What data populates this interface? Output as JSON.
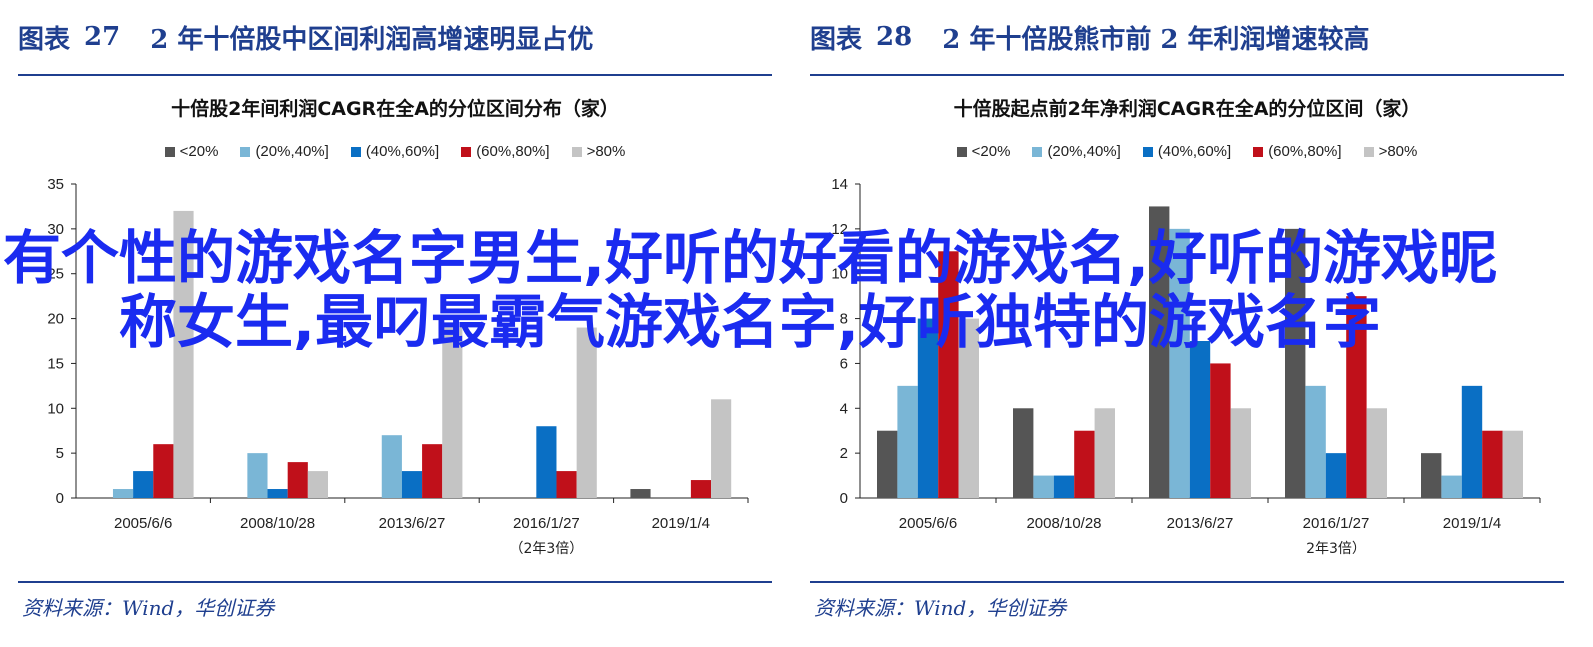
{
  "legend": [
    {
      "label": "<20%",
      "color": "#555555"
    },
    {
      "label": "(20%,40%]",
      "color": "#7ab6d6"
    },
    {
      "label": "(40%,60%]",
      "color": "#0a6fc4"
    },
    {
      "label": "(60%,80%]",
      "color": "#c0101a"
    },
    {
      "label": ">80%",
      "color": "#c4c4c4"
    }
  ],
  "left": {
    "header_label": "图表",
    "header_num": "27",
    "header_title": "2 年十倍股中区间利润高增速明显占优",
    "source": "资料来源：Wind，华创证券"
  },
  "right": {
    "header_label": "图表",
    "header_num": "28",
    "header_title": "2 年十倍股熊市前 2 年利润增速较高",
    "source": "资料来源：Wind，华创证券"
  },
  "overlay_text": "有个性的游戏名字男生,好听的好看的游戏名,好听的游戏昵称女生,最叼最霸气游戏名字,好听独特的游戏名字",
  "chart_data": [
    {
      "type": "bar",
      "title": "十倍股2年间利润CAGR在全A的分位区间分布（家）",
      "categories": [
        "2005/6/6",
        "2008/10/28",
        "2013/6/27",
        "2016/1/27",
        "2019/1/4"
      ],
      "category_sublabels": [
        "",
        "",
        "",
        "（2年3倍）",
        ""
      ],
      "series": [
        {
          "name": "<20%",
          "values": [
            0,
            0,
            0,
            0,
            1
          ]
        },
        {
          "name": "(20%,40%]",
          "values": [
            1,
            5,
            7,
            0,
            0
          ]
        },
        {
          "name": "(40%,60%]",
          "values": [
            3,
            1,
            3,
            8,
            0
          ]
        },
        {
          "name": "(60%,80%]",
          "values": [
            6,
            4,
            6,
            3,
            2
          ]
        },
        {
          "name": ">80%",
          "values": [
            32,
            3,
            19,
            19,
            11
          ]
        }
      ],
      "ylim": [
        0,
        35
      ],
      "yticks": [
        0,
        5,
        10,
        15,
        20,
        25,
        30,
        35
      ],
      "legend_position": "top"
    },
    {
      "type": "bar",
      "title": "十倍股起点前2年净利润CAGR在全A的分位区间（家）",
      "categories": [
        "2005/6/6",
        "2008/10/28",
        "2013/6/27",
        "2016/1/27",
        "2019/1/4"
      ],
      "category_sublabels": [
        "",
        "",
        "",
        "2年3倍）",
        ""
      ],
      "series": [
        {
          "name": "<20%",
          "values": [
            3,
            4,
            13,
            12,
            2
          ]
        },
        {
          "name": "(20%,40%]",
          "values": [
            5,
            1,
            12,
            5,
            1
          ]
        },
        {
          "name": "(40%,60%]",
          "values": [
            8,
            1,
            7,
            2,
            5
          ]
        },
        {
          "name": "(60%,80%]",
          "values": [
            11,
            3,
            6,
            9,
            3
          ]
        },
        {
          "name": ">80%",
          "values": [
            8,
            4,
            4,
            4,
            3
          ]
        }
      ],
      "ylim": [
        0,
        14
      ],
      "yticks": [
        0,
        2,
        4,
        6,
        8,
        10,
        12,
        14
      ],
      "legend_position": "top"
    }
  ]
}
